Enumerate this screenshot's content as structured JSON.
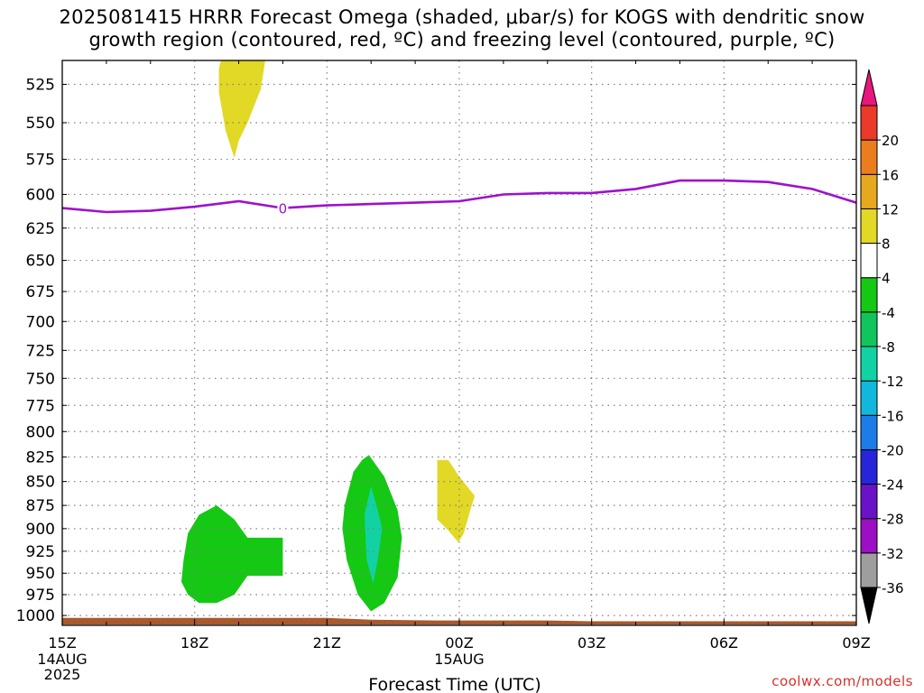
{
  "chart_data": {
    "type": "heatmap",
    "title_line1": "2025081415 HRRR Forecast Omega (shaded, μbar/s) for KOGS with dendritic snow",
    "title_line2": "growth region (contoured, red, ºC) and freezing level (contoured, purple, ºC)",
    "xlabel": "Forecast Time (UTC)",
    "x_hours": [
      0,
      3,
      6,
      9,
      12,
      15,
      18
    ],
    "x_tick_labels": [
      "15Z",
      "18Z",
      "21Z",
      "00Z",
      "03Z",
      "06Z",
      "09Z"
    ],
    "x_date_labels": [
      {
        "hour": 0,
        "lines": [
          "14AUG",
          "2025"
        ]
      },
      {
        "hour": 9,
        "lines": [
          "15AUG"
        ]
      }
    ],
    "y_label_unit": "hPa",
    "ylim": [
      1012,
      510
    ],
    "y_ticks": [
      525,
      550,
      575,
      600,
      625,
      650,
      675,
      700,
      725,
      750,
      775,
      800,
      825,
      850,
      875,
      900,
      925,
      950,
      975,
      1000
    ],
    "grid": true,
    "colorbar": {
      "bounds": [
        -36,
        -32,
        -28,
        -24,
        -20,
        -16,
        -12,
        -8,
        -4,
        4,
        8,
        12,
        16,
        20
      ],
      "colors": [
        "#9e9e9e",
        "#9b10c2",
        "#6a12c8",
        "#2626d8",
        "#1e7ce8",
        "#12b8dc",
        "#12d2a4",
        "#10c65c",
        "#14c814",
        "#ffffff",
        "#e2d826",
        "#e6a81e",
        "#ea7e1c",
        "#ea3a2a"
      ],
      "under_color": "#000000",
      "over_color": "#e8177c"
    },
    "series": [
      {
        "name": "freezing-level",
        "contour_label": "0",
        "color": "#9d11cc",
        "points": [
          [
            0,
            610
          ],
          [
            1,
            613
          ],
          [
            2,
            612
          ],
          [
            3,
            609
          ],
          [
            4,
            605
          ],
          [
            5,
            610
          ],
          [
            6,
            608
          ],
          [
            7,
            607
          ],
          [
            8,
            606
          ],
          [
            9,
            605
          ],
          [
            10,
            600
          ],
          [
            11,
            599
          ],
          [
            12,
            599
          ],
          [
            13,
            596
          ],
          [
            14,
            590
          ],
          [
            15,
            590
          ],
          [
            16,
            591
          ],
          [
            17,
            596
          ],
          [
            18,
            606
          ]
        ]
      }
    ],
    "shaded_regions": [
      {
        "name": "upper-yellow",
        "color": "#e2d826",
        "value_range": [
          4,
          8
        ],
        "polygon": [
          [
            3.6,
            510
          ],
          [
            4.6,
            510
          ],
          [
            4.5,
            528
          ],
          [
            4.2,
            550
          ],
          [
            4.0,
            562
          ],
          [
            3.9,
            574
          ],
          [
            3.7,
            555
          ],
          [
            3.55,
            530
          ],
          [
            3.55,
            515
          ]
        ]
      },
      {
        "name": "green-left",
        "color": "#14c814",
        "value_range": [
          -8,
          -4
        ],
        "polygon": [
          [
            2.75,
            935
          ],
          [
            2.85,
            905
          ],
          [
            3.1,
            885
          ],
          [
            3.5,
            875
          ],
          [
            3.9,
            890
          ],
          [
            4.2,
            910
          ],
          [
            5.0,
            910
          ],
          [
            5.0,
            953
          ],
          [
            4.2,
            953
          ],
          [
            3.9,
            975
          ],
          [
            3.5,
            985
          ],
          [
            3.1,
            985
          ],
          [
            2.85,
            975
          ],
          [
            2.7,
            960
          ]
        ]
      },
      {
        "name": "green-mid",
        "color": "#14c814",
        "value_range": [
          -8,
          -4
        ],
        "polygon": [
          [
            6.4,
            875
          ],
          [
            6.6,
            840
          ],
          [
            6.8,
            828
          ],
          [
            6.95,
            823
          ],
          [
            7.3,
            845
          ],
          [
            7.6,
            880
          ],
          [
            7.7,
            910
          ],
          [
            7.6,
            955
          ],
          [
            7.3,
            985
          ],
          [
            7.0,
            995
          ],
          [
            6.7,
            975
          ],
          [
            6.45,
            935
          ],
          [
            6.35,
            900
          ]
        ]
      },
      {
        "name": "teal-mid",
        "color": "#12d2a4",
        "value_range": [
          -12,
          -8
        ],
        "polygon": [
          [
            6.85,
            885
          ],
          [
            7.0,
            855
          ],
          [
            7.15,
            880
          ],
          [
            7.25,
            900
          ],
          [
            7.15,
            935
          ],
          [
            7.05,
            962
          ],
          [
            6.9,
            935
          ]
        ]
      },
      {
        "name": "lower-yellow",
        "color": "#e2d826",
        "value_range": [
          4,
          8
        ],
        "polygon": [
          [
            8.5,
            828
          ],
          [
            8.75,
            828
          ],
          [
            9.0,
            845
          ],
          [
            9.35,
            865
          ],
          [
            9.25,
            880
          ],
          [
            9.1,
            905
          ],
          [
            8.98,
            915
          ],
          [
            8.75,
            902
          ],
          [
            8.5,
            890
          ]
        ]
      },
      {
        "name": "terrain",
        "color": "#a9592e",
        "role": "ground",
        "polygon": [
          [
            0,
            1011
          ],
          [
            0,
            1003
          ],
          [
            6,
            1003
          ],
          [
            7,
            1005
          ],
          [
            8.5,
            1006
          ],
          [
            11,
            1006
          ],
          [
            12,
            1007
          ],
          [
            18,
            1007
          ],
          [
            18,
            1011
          ]
        ]
      }
    ]
  },
  "credit": "coolwx.com/models"
}
